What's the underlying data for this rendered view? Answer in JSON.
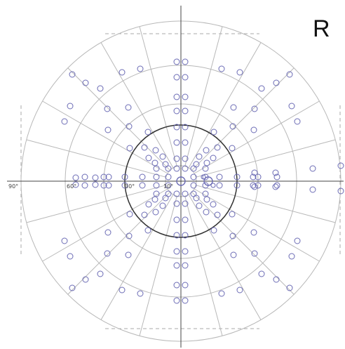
{
  "eye_label": "R",
  "degree_labels": [
    "90°",
    "60°",
    "30°",
    "10°"
  ],
  "colors": {
    "outer_circles": "#b8b8b8",
    "radial_lines": "#b8b8b8",
    "inner_circle": "#333333",
    "axes": "#444444",
    "dashed_frame": "#aaaaaa",
    "test_points": "#6b6bb5"
  },
  "test_points_note_free": true
}
